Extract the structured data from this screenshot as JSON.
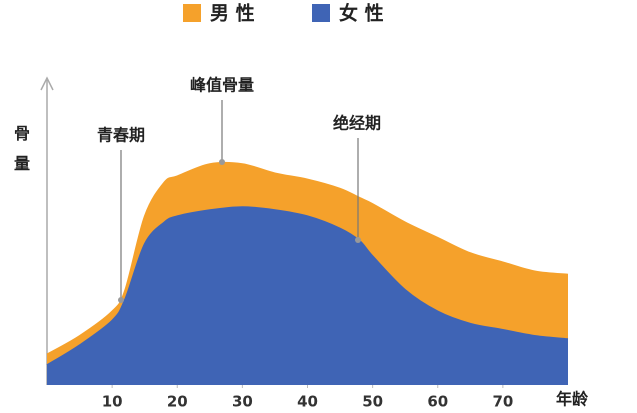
{
  "chart_data": {
    "type": "area",
    "y_label": "骨量",
    "x_label": "年龄",
    "x": [
      0,
      5,
      10,
      12,
      15,
      18,
      20,
      25,
      30,
      35,
      40,
      45,
      48,
      50,
      55,
      60,
      65,
      70,
      75,
      80
    ],
    "series": [
      {
        "name": "男 性",
        "color": "#f5a12b",
        "values": [
          10,
          16,
          24,
          31,
          55,
          66,
          68,
          72,
          72,
          69,
          67,
          64,
          61,
          59,
          53,
          48,
          43,
          40,
          37,
          36
        ]
      },
      {
        "name": "女 性",
        "color": "#3f64b5",
        "values": [
          6.5,
          13,
          21,
          28,
          46,
          53,
          55,
          57,
          58,
          57,
          55,
          51,
          47,
          42,
          31,
          24,
          20,
          18,
          16,
          15
        ]
      }
    ],
    "xlim": [
      0,
      80
    ],
    "ylim": [
      0,
      100
    ],
    "xticks": [
      10,
      20,
      30,
      40,
      50,
      60,
      70
    ],
    "annotations": [
      "青春期",
      "峰值骨量",
      "绝经期"
    ]
  }
}
